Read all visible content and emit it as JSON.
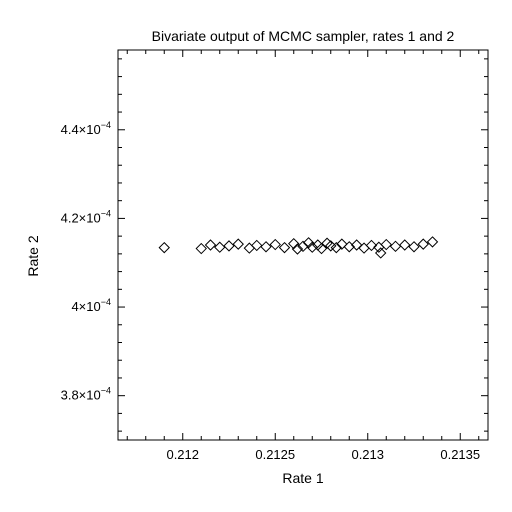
{
  "chart_data": {
    "type": "scatter",
    "title": "Bivariate output of MCMC sampler, rates 1 and 2",
    "xlabel": "Rate 1",
    "ylabel": "Rate 2",
    "xlim": [
      0.21165,
      0.21365
    ],
    "ylim": [
      0.00037,
      0.000458
    ],
    "x_ticks": [
      {
        "value": 0.212,
        "label": "0.212"
      },
      {
        "value": 0.2125,
        "label": "0.2125"
      },
      {
        "value": 0.213,
        "label": "0.213"
      },
      {
        "value": 0.2135,
        "label": "0.2135"
      }
    ],
    "y_ticks": [
      {
        "value": 0.00038,
        "mantissa": "3.8×10",
        "exponent": "−4"
      },
      {
        "value": 0.0004,
        "mantissa": "4×10",
        "exponent": "−4"
      },
      {
        "value": 0.00042,
        "mantissa": "4.2×10",
        "exponent": "−4"
      },
      {
        "value": 0.00044,
        "mantissa": "4.4×10",
        "exponent": "−4"
      }
    ],
    "marker": "diamond-open",
    "grid": false,
    "points": [
      [
        0.2119,
        0.0004134
      ],
      [
        0.2121,
        0.0004132
      ],
      [
        0.21215,
        0.000414
      ],
      [
        0.2122,
        0.0004135
      ],
      [
        0.21225,
        0.0004138
      ],
      [
        0.2123,
        0.0004142
      ],
      [
        0.21236,
        0.0004133
      ],
      [
        0.2124,
        0.0004139
      ],
      [
        0.21245,
        0.0004136
      ],
      [
        0.2125,
        0.0004141
      ],
      [
        0.21255,
        0.0004134
      ],
      [
        0.2126,
        0.0004143
      ],
      [
        0.21262,
        0.0004131
      ],
      [
        0.21265,
        0.0004137
      ],
      [
        0.21268,
        0.0004145
      ],
      [
        0.2127,
        0.0004135
      ],
      [
        0.21273,
        0.000414
      ],
      [
        0.21275,
        0.0004132
      ],
      [
        0.21278,
        0.0004144
      ],
      [
        0.2128,
        0.0004138
      ],
      [
        0.21283,
        0.0004134
      ],
      [
        0.21286,
        0.0004142
      ],
      [
        0.2129,
        0.0004136
      ],
      [
        0.21294,
        0.000414
      ],
      [
        0.21298,
        0.0004133
      ],
      [
        0.21302,
        0.0004139
      ],
      [
        0.21306,
        0.0004135
      ],
      [
        0.2131,
        0.0004141
      ],
      [
        0.21307,
        0.0004122
      ],
      [
        0.21315,
        0.0004137
      ],
      [
        0.2132,
        0.000414
      ],
      [
        0.21325,
        0.0004136
      ],
      [
        0.2133,
        0.0004142
      ],
      [
        0.21335,
        0.0004147
      ]
    ]
  }
}
